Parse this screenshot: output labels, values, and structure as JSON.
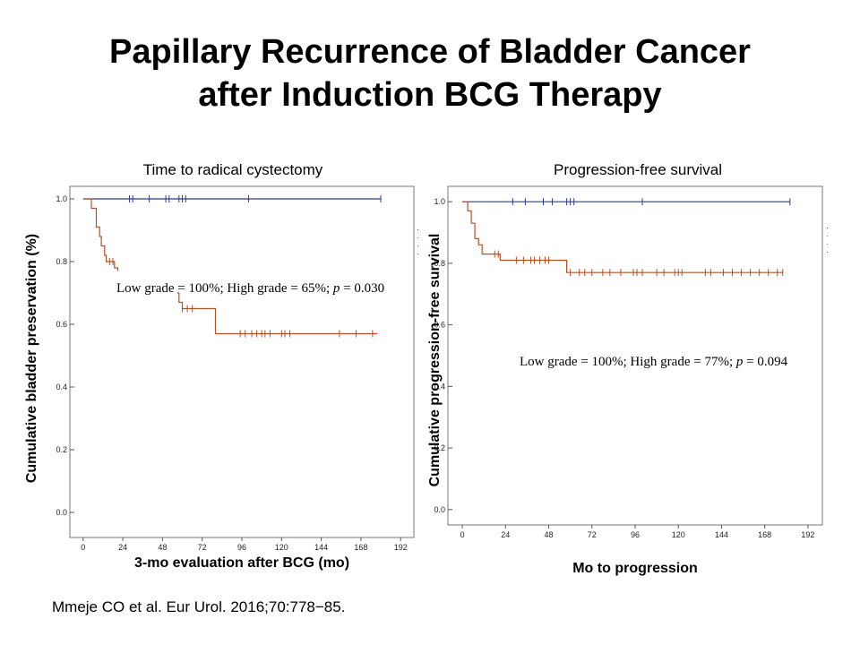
{
  "slide": {
    "title_line1": "Papillary Recurrence of Bladder Cancer",
    "title_line2": "after Induction BCG Therapy",
    "citation": "Mmeje CO et al. Eur Urol. 2016;70:778−85."
  },
  "chart_data": [
    {
      "type": "line",
      "title": "Time to radical cystectomy",
      "xlabel": "3-mo evaluation after BCG (mo)",
      "ylabel": "Cumulative bladder preservation (%)",
      "annotation": "Low grade = 100%; High grade = 65%; p = 0.030",
      "xlim": [
        -8,
        200
      ],
      "ylim": [
        -0.08,
        1.04
      ],
      "xticks": [
        "0",
        "24",
        "48",
        "72",
        "96",
        "120",
        "144",
        "168",
        "192"
      ],
      "yticks": [
        "0.0",
        "0.2",
        "0.4",
        "0.6",
        "0.8",
        "1.0"
      ],
      "series": [
        {
          "color": "#2e3a8c",
          "steps": [
            [
              0,
              1.0
            ],
            [
              180,
              1.0
            ]
          ],
          "censored": [
            28,
            30,
            40,
            50,
            52,
            58,
            60,
            62,
            100,
            180
          ]
        },
        {
          "color": "#b0522a",
          "steps": [
            [
              0,
              1.0
            ],
            [
              5,
              0.97
            ],
            [
              8,
              0.91
            ],
            [
              10,
              0.88
            ],
            [
              11,
              0.85
            ],
            [
              13,
              0.82
            ],
            [
              14,
              0.8
            ],
            [
              19,
              0.78
            ],
            [
              21,
              0.77
            ],
            [
              57,
              0.7
            ],
            [
              58,
              0.67
            ],
            [
              60,
              0.65
            ],
            [
              80,
              0.57
            ],
            [
              178,
              0.57
            ]
          ],
          "censored": [
            16,
            18,
            60,
            63,
            66,
            95,
            98,
            102,
            105,
            108,
            110,
            113,
            120,
            122,
            125,
            155,
            165,
            175
          ],
          "segments": [
            [
              0,
              21
            ],
            [
              57,
              178
            ]
          ]
        }
      ]
    },
    {
      "type": "line",
      "title": "Progression-free survival",
      "xlabel": "Mo to progression",
      "ylabel": "Cumulative progression-free survival",
      "annotation": "Low grade = 100%; High grade = 77%; p = 0.094",
      "xlim": [
        -8,
        200
      ],
      "ylim": [
        -0.05,
        1.05
      ],
      "xticks": [
        "0",
        "24",
        "48",
        "72",
        "96",
        "120",
        "144",
        "168",
        "192"
      ],
      "yticks": [
        "0.0",
        "0.2",
        "0.4",
        "0.6",
        "0.8",
        "1.0"
      ],
      "series": [
        {
          "color": "#2e3a8c",
          "steps": [
            [
              0,
              1.0
            ],
            [
              182,
              1.0
            ]
          ],
          "censored": [
            28,
            35,
            45,
            50,
            58,
            60,
            62,
            100,
            182
          ]
        },
        {
          "color": "#b0522a",
          "steps": [
            [
              0,
              1.0
            ],
            [
              3,
              0.97
            ],
            [
              5,
              0.93
            ],
            [
              7,
              0.88
            ],
            [
              9,
              0.86
            ],
            [
              11,
              0.83
            ],
            [
              21,
              0.81
            ],
            [
              58,
              0.77
            ],
            [
              178,
              0.77
            ]
          ],
          "censored": [
            18,
            20,
            30,
            34,
            38,
            40,
            43,
            46,
            48,
            60,
            65,
            68,
            72,
            78,
            82,
            88,
            95,
            97,
            100,
            108,
            112,
            118,
            120,
            122,
            135,
            138,
            145,
            150,
            155,
            160,
            165,
            170,
            175,
            178
          ]
        }
      ]
    }
  ]
}
